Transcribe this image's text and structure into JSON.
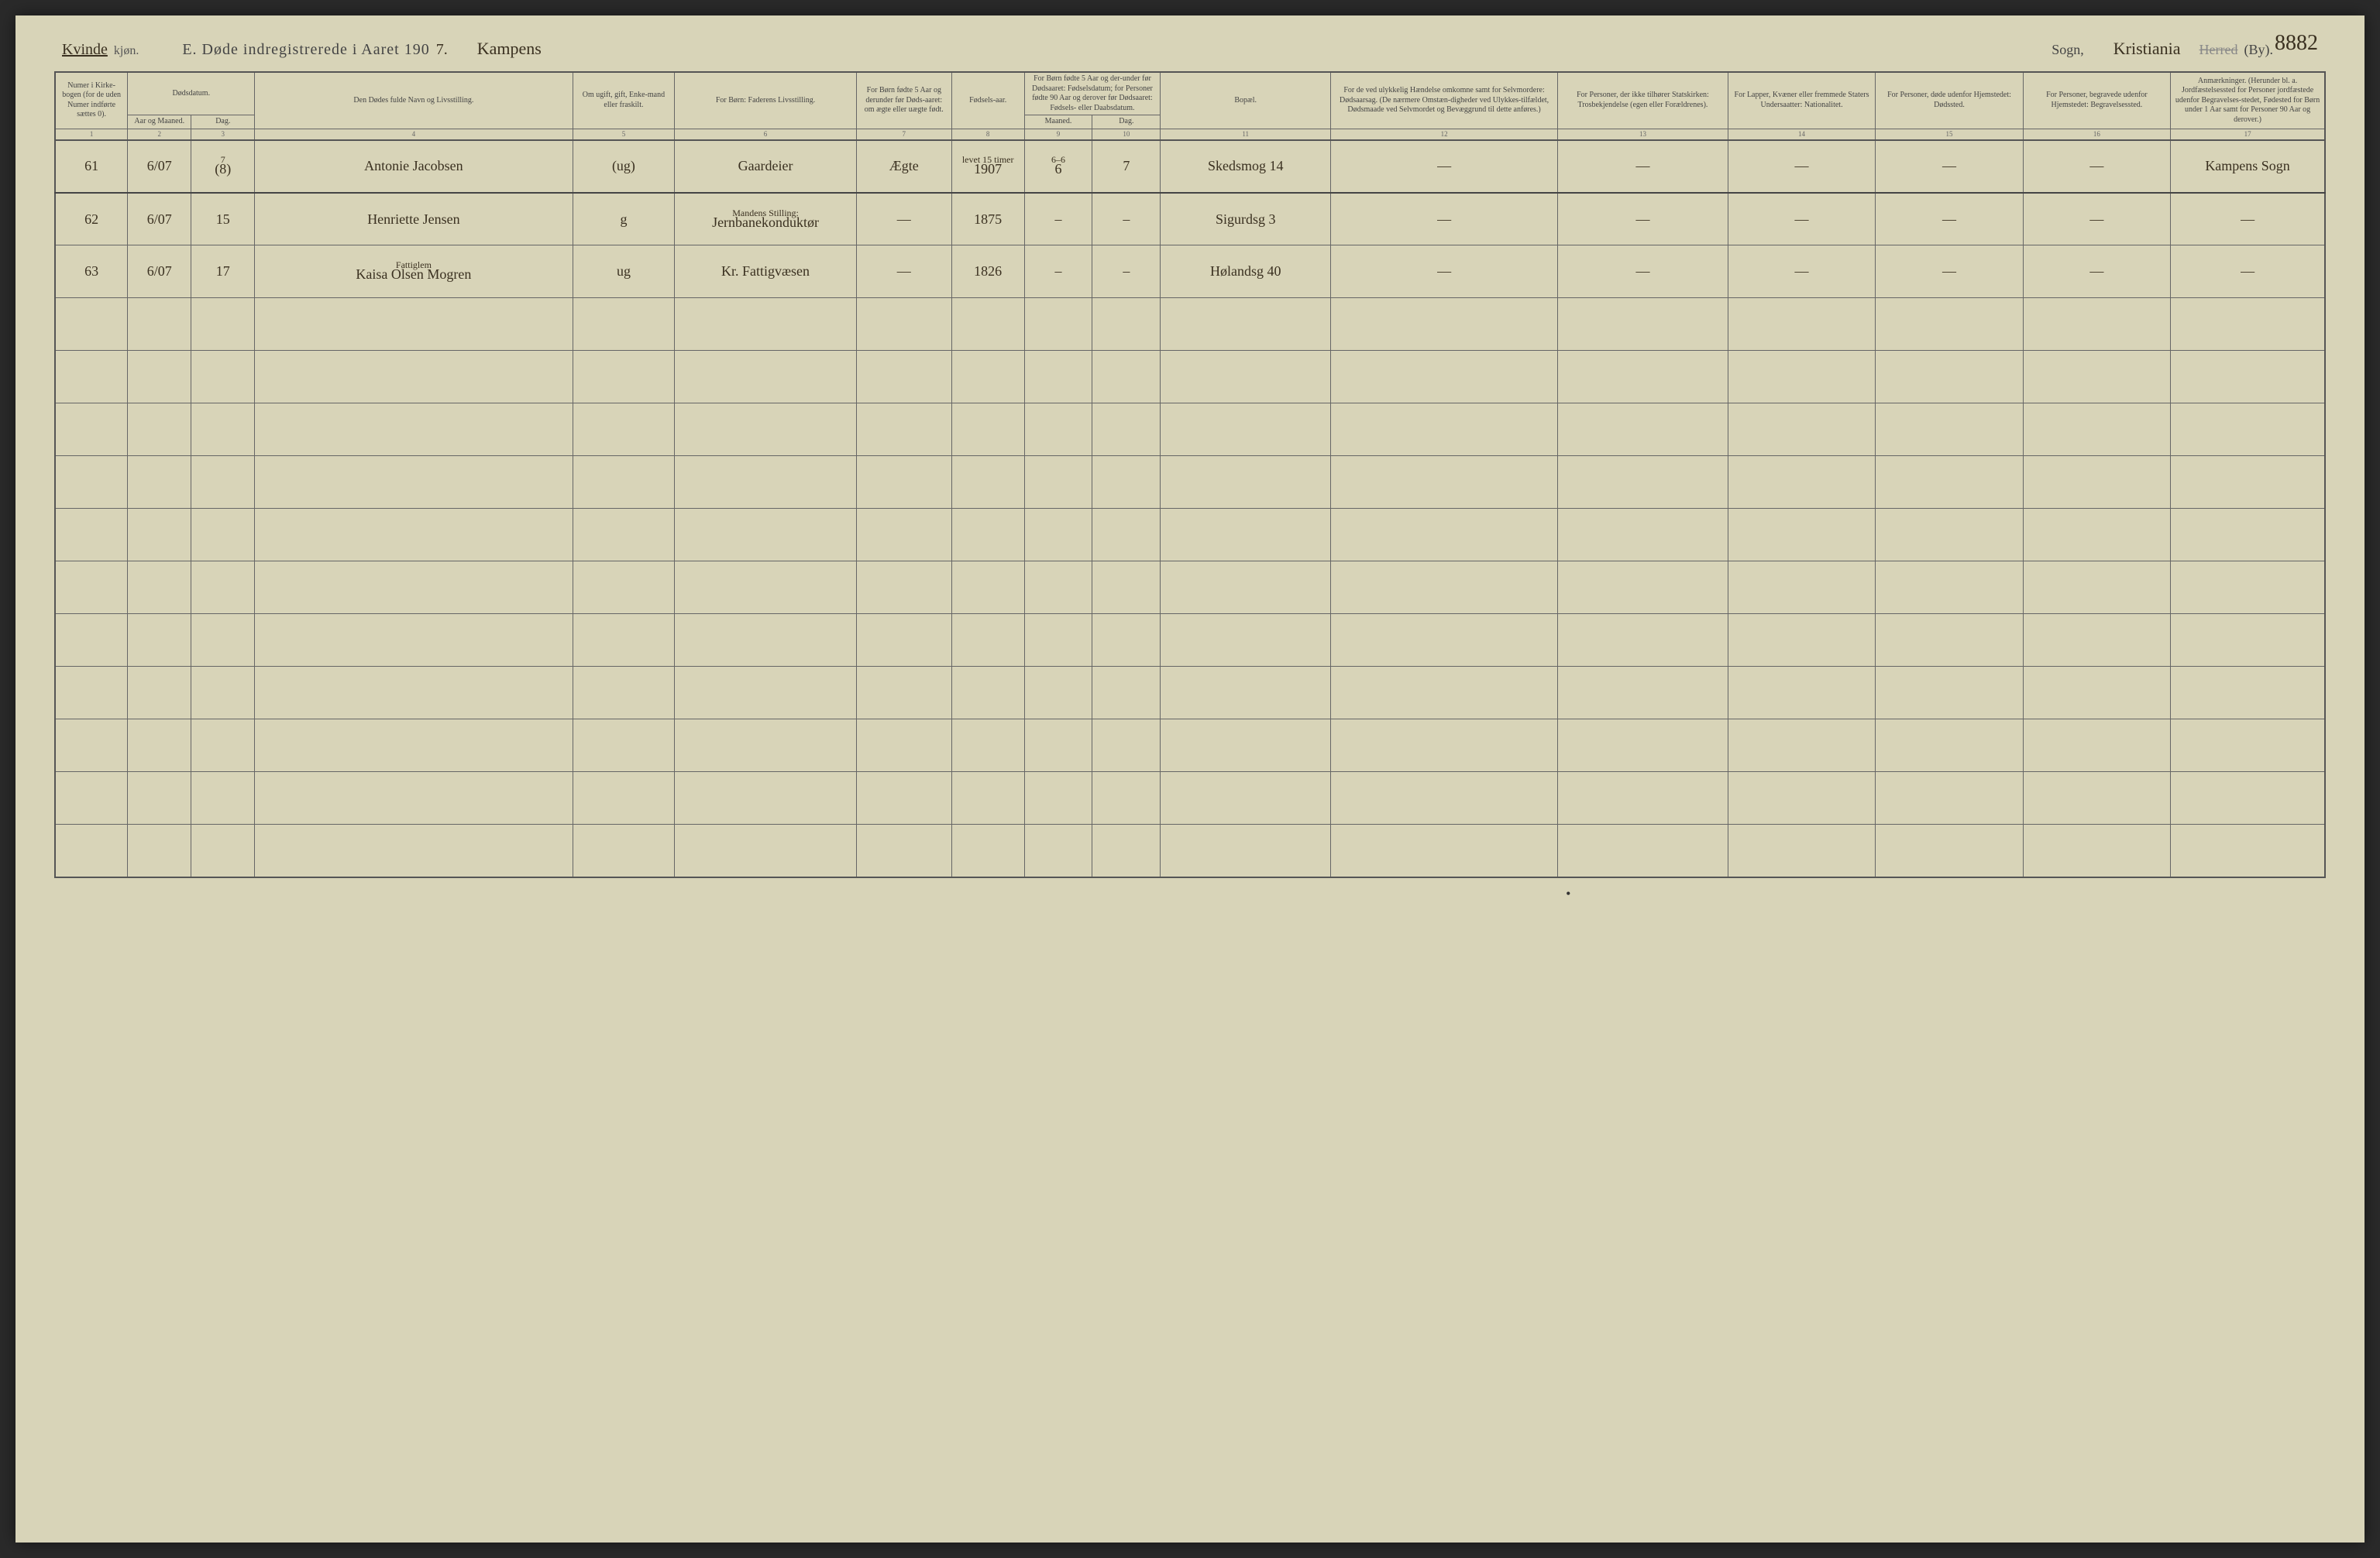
{
  "page_number_hand": "8882",
  "header": {
    "gender_hand": "Kvinde",
    "printed_suffix": "kjøn.",
    "title_prefix": "E.  Døde indregistrerede i Aaret 190",
    "year_digit_hand": "7.",
    "parish_hand": "Kampens",
    "sogn_label": "Sogn,",
    "city_hand": "Kristiania",
    "herred_struck": "Herred",
    "by_label": "(By)."
  },
  "columns": {
    "c1": "Numer i Kirke-bogen (for de uden Numer indførte sættes 0).",
    "c2_group": "Dødsdatum.",
    "c2": "Aar og Maaned.",
    "c3": "Dag.",
    "c4": "Den Dødes fulde Navn og Livsstilling.",
    "c5": "Om ugift, gift, Enke-mand eller fraskilt.",
    "c6": "For Børn: Faderens Livsstilling.",
    "c7": "For Børn fødte 5 Aar og derunder før Døds-aaret: om ægte eller uægte født.",
    "c8": "Fødsels-aar.",
    "c9_10_group": "For Børn fødte 5 Aar og der-under før Dødsaaret: Fødselsdatum; for Personer fødte 90 Aar og derover før Dødsaaret: Fødsels- eller Daabsdatum.",
    "c9": "Maaned.",
    "c10": "Dag.",
    "c11": "Bopæl.",
    "c12": "For de ved ulykkelig Hændelse omkomne samt for Selvmordere: Dødsaarsag. (De nærmere Omstæn-digheder ved Ulykkes-tilfældet, Dødsmaade ved Selvmordet og Bevæggrund til dette anføres.)",
    "c13": "For Personer, der ikke tilhører Statskirken: Trosbekjendelse (egen eller Forældrenes).",
    "c14": "For Lapper, Kvæner eller fremmede Staters Undersaatter: Nationalitet.",
    "c15": "For Personer, døde udenfor Hjemstedet: Dødssted.",
    "c16": "For Personer, begravede udenfor Hjemstedet: Begravelsessted.",
    "c17": "Anmærkninger. (Herunder bl. a. Jordfæstelsessted for Personer jordfæstede udenfor Begravelses-stedet, Fødested for Børn under 1 Aar samt for Personer 90 Aar og derover.)"
  },
  "colnums": [
    "1",
    "2",
    "3",
    "4",
    "5",
    "6",
    "7",
    "8",
    "9",
    "10",
    "11",
    "12",
    "13",
    "14",
    "15",
    "16",
    "17"
  ],
  "rows": [
    {
      "num": "61",
      "aar_md": "6/07",
      "dag_sup": "7",
      "dag": "(8)",
      "navn": "Antonie Jacobsen",
      "stand": "(ug)",
      "far": "Gaardeier",
      "aegte": "Ægte",
      "faar_sup": "levet 15 timer",
      "faar": "1907",
      "fmd_sup": "6–6",
      "fmd": "6",
      "fdag": "7",
      "bopael": "Skedsmog 14",
      "c12": "—",
      "c13": "—",
      "c14": "—",
      "c15": "—",
      "c16": "—",
      "anm": "Kampens Sogn"
    },
    {
      "num": "62",
      "aar_md": "6/07",
      "dag": "15",
      "navn": "Henriette Jensen",
      "stand": "g",
      "far_sup": "Mandens Stilling:",
      "far": "Jernbanekonduktør",
      "aegte": "—",
      "faar": "1875",
      "fmd": "–",
      "fdag": "–",
      "bopael": "Sigurdsg 3",
      "c12": "—",
      "c13": "—",
      "c14": "—",
      "c15": "—",
      "c16": "—",
      "anm": "—"
    },
    {
      "num": "63",
      "aar_md": "6/07",
      "dag": "17",
      "navn_sup": "Fattiglem",
      "navn": "Kaisa Olsen Mogren",
      "stand": "ug",
      "far": "Kr. Fattigvæsen",
      "aegte": "—",
      "faar": "1826",
      "fmd": "–",
      "fdag": "–",
      "bopael": "Hølandsg 40",
      "c12": "—",
      "c13": "—",
      "c14": "—",
      "c15": "—",
      "c16": "—",
      "anm": "—"
    }
  ],
  "empty_row_count": 11
}
